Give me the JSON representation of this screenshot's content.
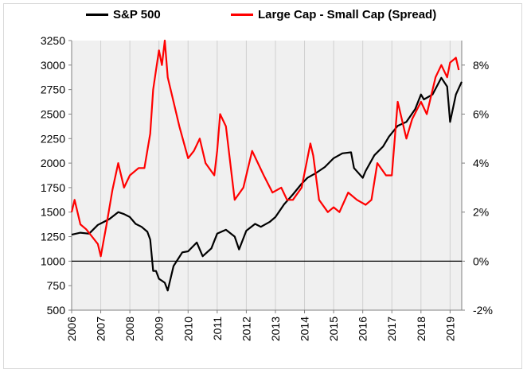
{
  "chart_data": {
    "type": "line",
    "title": "",
    "xlabel": "",
    "ylabel": "",
    "x_ticks": [
      "2006",
      "2007",
      "2008",
      "2009",
      "2010",
      "2011",
      "2012",
      "2013",
      "2014",
      "2015",
      "2016",
      "2017",
      "2018",
      "2019"
    ],
    "xlim": [
      2006,
      2019.4
    ],
    "ylim_left": [
      500,
      3250
    ],
    "yticks_left": [
      "3250",
      "3000",
      "2750",
      "2500",
      "2250",
      "2000",
      "1750",
      "1500",
      "1250",
      "1000",
      "750",
      "500"
    ],
    "ylim_right": [
      -2,
      9
    ],
    "yticks_right": [
      "8%",
      "6%",
      "4%",
      "2%",
      "0%",
      "-2%"
    ],
    "grid": "vertical",
    "legend_position": "top",
    "colors": {
      "sp500": "#000000",
      "spread": "#ff0000"
    },
    "series": [
      {
        "name": "S&P 500",
        "axis": "left",
        "x": [
          2006.0,
          2006.3,
          2006.6,
          2006.9,
          2007.1,
          2007.3,
          2007.6,
          2007.8,
          2008.0,
          2008.2,
          2008.4,
          2008.6,
          2008.7,
          2008.8,
          2008.9,
          2009.0,
          2009.1,
          2009.2,
          2009.3,
          2009.5,
          2009.8,
          2010.0,
          2010.3,
          2010.5,
          2010.8,
          2011.0,
          2011.3,
          2011.6,
          2011.75,
          2012.0,
          2012.3,
          2012.5,
          2012.8,
          2013.0,
          2013.3,
          2013.6,
          2013.9,
          2014.1,
          2014.4,
          2014.7,
          2015.0,
          2015.3,
          2015.6,
          2015.7,
          2016.0,
          2016.1,
          2016.4,
          2016.7,
          2016.9,
          2017.2,
          2017.5,
          2017.8,
          2018.0,
          2018.1,
          2018.4,
          2018.7,
          2018.9,
          2019.0,
          2019.2,
          2019.4
        ],
        "values": [
          1270,
          1290,
          1280,
          1370,
          1400,
          1430,
          1500,
          1480,
          1450,
          1380,
          1350,
          1300,
          1220,
          900,
          900,
          820,
          800,
          780,
          700,
          950,
          1090,
          1100,
          1190,
          1050,
          1130,
          1280,
          1320,
          1250,
          1120,
          1310,
          1380,
          1350,
          1400,
          1450,
          1580,
          1680,
          1790,
          1850,
          1900,
          1960,
          2050,
          2100,
          2110,
          1950,
          1850,
          1920,
          2080,
          2170,
          2270,
          2380,
          2420,
          2550,
          2700,
          2650,
          2700,
          2870,
          2780,
          2420,
          2700,
          2830
        ]
      },
      {
        "name": "Large Cap - Small Cap (Spread)",
        "axis": "right",
        "x": [
          2006.0,
          2006.1,
          2006.3,
          2006.5,
          2006.7,
          2006.9,
          2007.0,
          2007.2,
          2007.4,
          2007.6,
          2007.8,
          2008.0,
          2008.3,
          2008.5,
          2008.7,
          2008.8,
          2008.9,
          2009.0,
          2009.1,
          2009.2,
          2009.3,
          2009.5,
          2009.7,
          2010.0,
          2010.2,
          2010.4,
          2010.6,
          2010.9,
          2011.0,
          2011.1,
          2011.3,
          2011.5,
          2011.6,
          2011.9,
          2012.2,
          2012.4,
          2012.6,
          2012.9,
          2013.2,
          2013.4,
          2013.6,
          2013.9,
          2014.2,
          2014.3,
          2014.5,
          2014.8,
          2015.0,
          2015.2,
          2015.5,
          2015.8,
          2016.1,
          2016.3,
          2016.5,
          2016.8,
          2017.0,
          2017.2,
          2017.5,
          2017.7,
          2018.0,
          2018.2,
          2018.5,
          2018.7,
          2018.9,
          2019.0,
          2019.2,
          2019.3
        ],
        "values": [
          2.0,
          2.5,
          1.5,
          1.3,
          1.0,
          0.7,
          0.2,
          1.5,
          2.9,
          4.0,
          3.0,
          3.5,
          3.8,
          3.8,
          5.2,
          7.0,
          7.8,
          8.6,
          8.0,
          9.0,
          7.5,
          6.5,
          5.5,
          4.2,
          4.5,
          5.0,
          4.0,
          3.5,
          4.5,
          6.0,
          5.5,
          3.5,
          2.5,
          3.0,
          4.5,
          4.0,
          3.5,
          2.8,
          3.0,
          2.5,
          2.5,
          3.0,
          4.8,
          4.3,
          2.5,
          2.0,
          2.2,
          2.0,
          2.8,
          2.5,
          2.3,
          2.5,
          4.0,
          3.5,
          3.5,
          6.5,
          5.0,
          5.8,
          6.5,
          6.0,
          7.5,
          8.0,
          7.5,
          8.1,
          8.3,
          7.8
        ]
      }
    ]
  }
}
